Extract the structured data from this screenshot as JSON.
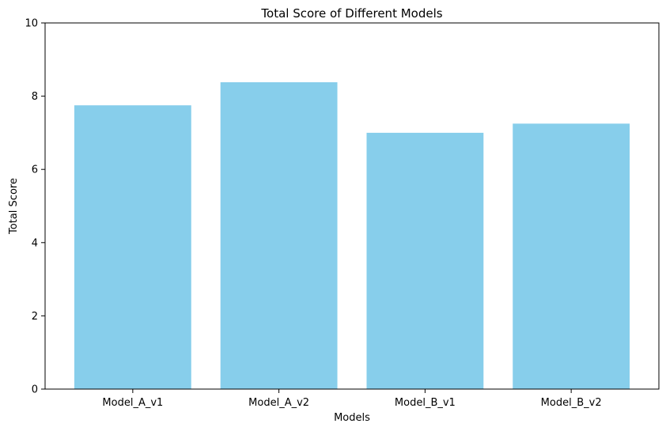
{
  "chart_data": {
    "type": "bar",
    "title": "Total Score of Different Models",
    "xlabel": "Models",
    "ylabel": "Total Score",
    "categories": [
      "Model_A_v1",
      "Model_A_v2",
      "Model_B_v1",
      "Model_B_v2"
    ],
    "values": [
      7.75,
      8.38,
      7.0,
      7.25
    ],
    "ylim": [
      0,
      10
    ],
    "yticks": [
      0,
      2,
      4,
      6,
      8,
      10
    ],
    "ytick_labels": [
      "0",
      "2",
      "4",
      "6",
      "8",
      "10"
    ],
    "grid": false,
    "bar_color": "#87CEEB"
  }
}
